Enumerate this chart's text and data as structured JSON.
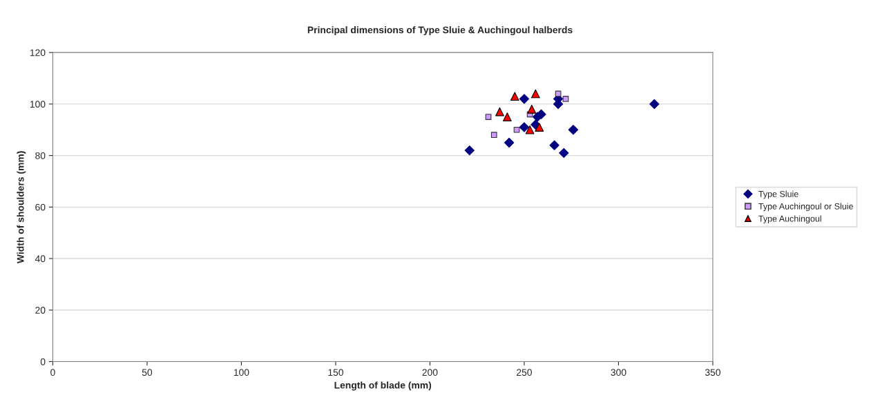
{
  "chart_data": {
    "type": "scatter",
    "title": "Principal dimensions of Type Sluie & Auchingoul halberds",
    "xlabel": "Length of blade (mm)",
    "ylabel": "Width of shoulders (mm)",
    "xlim": [
      0,
      350
    ],
    "xticks": [
      0,
      50,
      100,
      150,
      200,
      250,
      300,
      350
    ],
    "ylim": [
      0,
      120
    ],
    "yticks": [
      0,
      20,
      40,
      60,
      80,
      100,
      120
    ],
    "grid": "y",
    "legend": "right",
    "series": [
      {
        "name": "Type Sluie",
        "color": "#000080",
        "marker": "diamond",
        "x": [
          221,
          242,
          250,
          250,
          256,
          257,
          259,
          266,
          268,
          268,
          271,
          276,
          319
        ],
        "values": [
          82,
          85,
          102,
          91,
          92,
          95,
          96,
          84,
          102,
          100,
          81,
          90,
          100
        ]
      },
      {
        "name": "Type Auchingoul or Sluie",
        "color": "#cc99ff",
        "marker": "square",
        "x": [
          231,
          234,
          246,
          253,
          268,
          272
        ],
        "values": [
          95,
          88,
          90,
          96,
          104,
          102
        ]
      },
      {
        "name": "Type Auchingoul",
        "color": "#ff0000",
        "marker": "triangle",
        "x": [
          245,
          256,
          237,
          241,
          254,
          253,
          258
        ],
        "values": [
          103,
          104,
          97,
          95,
          98,
          90,
          91
        ]
      }
    ]
  }
}
